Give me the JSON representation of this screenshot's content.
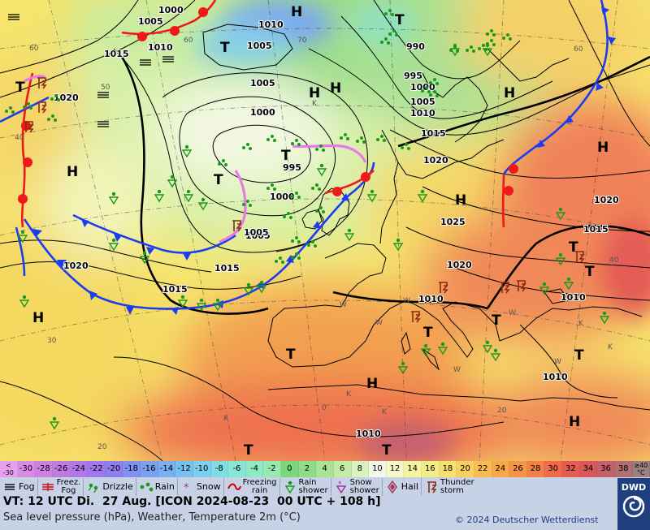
{
  "map": {
    "pressure_labels": [
      {
        "text": "1000"
      },
      {
        "text": "1005"
      },
      {
        "text": "1010"
      },
      {
        "text": "1010"
      },
      {
        "text": "1005"
      },
      {
        "text": "1015"
      },
      {
        "text": "1020"
      },
      {
        "text": "1005"
      },
      {
        "text": "1000"
      },
      {
        "text": "995"
      },
      {
        "text": "1000"
      },
      {
        "text": "1005"
      },
      {
        "text": "990"
      },
      {
        "text": "995"
      },
      {
        "text": "1000"
      },
      {
        "text": "1005"
      },
      {
        "text": "1010"
      },
      {
        "text": "1015"
      },
      {
        "text": "1020"
      },
      {
        "text": "1025"
      },
      {
        "text": "1020"
      },
      {
        "text": "1015"
      },
      {
        "text": "1020"
      },
      {
        "text": "1015"
      },
      {
        "text": "1010"
      },
      {
        "text": "1010"
      },
      {
        "text": "1010"
      },
      {
        "text": "1015"
      },
      {
        "text": "1020"
      },
      {
        "text": "1005"
      },
      {
        "text": "1010"
      }
    ],
    "pressure_centers": [
      {
        "text": "H",
        "color": "#000000"
      },
      {
        "text": "T",
        "color": "#000000"
      },
      {
        "text": "T",
        "color": "#000000"
      },
      {
        "text": "H",
        "color": "#000000"
      },
      {
        "text": "T",
        "color": "#000000"
      },
      {
        "text": "H",
        "color": "#000000"
      },
      {
        "text": "T",
        "color": "#000000"
      },
      {
        "text": "T",
        "color": "#000000"
      },
      {
        "text": "H",
        "color": "#000000"
      },
      {
        "text": "H",
        "color": "#000000"
      },
      {
        "text": "H",
        "color": "#000000"
      },
      {
        "text": "H",
        "color": "#000000"
      },
      {
        "text": "T",
        "color": "#000000"
      },
      {
        "text": "T",
        "color": "#000000"
      },
      {
        "text": "T",
        "color": "#000000"
      },
      {
        "text": "T",
        "color": "#000000"
      },
      {
        "text": "H",
        "color": "#000000"
      },
      {
        "text": "H",
        "color": "#000000"
      },
      {
        "text": "T",
        "color": "#000000"
      },
      {
        "text": "T",
        "color": "#000000"
      },
      {
        "text": "H",
        "color": "#000000"
      },
      {
        "text": "H",
        "color": "#000000"
      },
      {
        "text": "T",
        "color": "#000000"
      },
      {
        "text": "T",
        "color": "#000000"
      }
    ],
    "grid_labels": [
      {
        "text": "60"
      },
      {
        "text": "60"
      },
      {
        "text": "70"
      },
      {
        "text": "60"
      },
      {
        "text": "50"
      },
      {
        "text": "40"
      },
      {
        "text": "40"
      },
      {
        "text": "30"
      },
      {
        "text": "20"
      },
      {
        "text": "0"
      },
      {
        "text": "20"
      }
    ],
    "airmass_labels": [
      {
        "text": "W"
      },
      {
        "text": "W"
      },
      {
        "text": "W"
      },
      {
        "text": "W"
      },
      {
        "text": "W"
      },
      {
        "text": "K"
      },
      {
        "text": "K"
      },
      {
        "text": "K"
      },
      {
        "text": "K"
      },
      {
        "text": "K"
      },
      {
        "text": "K"
      },
      {
        "text": "W"
      }
    ]
  },
  "temperature_scale": {
    "items": [
      {
        "label": "<\n-30",
        "color": "#e6a0f0"
      },
      {
        "label": "-30",
        "color": "#d98ce6"
      },
      {
        "label": "-28",
        "color": "#cc80e0"
      },
      {
        "label": "-26",
        "color": "#bf7ae0"
      },
      {
        "label": "-24",
        "color": "#b078e6"
      },
      {
        "label": "-22",
        "color": "#a078eb"
      },
      {
        "label": "-20",
        "color": "#8f7ef0"
      },
      {
        "label": "-18",
        "color": "#8090f0"
      },
      {
        "label": "-16",
        "color": "#7aa0f0"
      },
      {
        "label": "-14",
        "color": "#78b0f0"
      },
      {
        "label": "-12",
        "color": "#78c0f0"
      },
      {
        "label": "-10",
        "color": "#7ad0ee"
      },
      {
        "label": "-8",
        "color": "#80dde6"
      },
      {
        "label": "-6",
        "color": "#88e6d8"
      },
      {
        "label": "-4",
        "color": "#90e8c4"
      },
      {
        "label": "-2",
        "color": "#98e8b0"
      },
      {
        "label": "0",
        "color": "#7cd67c"
      },
      {
        "label": "2",
        "color": "#90dc88"
      },
      {
        "label": "4",
        "color": "#a8e494"
      },
      {
        "label": "6",
        "color": "#c4eca8"
      },
      {
        "label": "8",
        "color": "#dcf2c0"
      },
      {
        "label": "10",
        "color": "#f4f8e8"
      },
      {
        "label": "12",
        "color": "#f8f8c8"
      },
      {
        "label": "14",
        "color": "#f4f4a0"
      },
      {
        "label": "16",
        "color": "#f4ec88"
      },
      {
        "label": "18",
        "color": "#f6e070"
      },
      {
        "label": "20",
        "color": "#f8d060"
      },
      {
        "label": "22",
        "color": "#f8bc50"
      },
      {
        "label": "24",
        "color": "#f8a848"
      },
      {
        "label": "26",
        "color": "#f89448"
      },
      {
        "label": "28",
        "color": "#f48048"
      },
      {
        "label": "30",
        "color": "#ee6c4c"
      },
      {
        "label": "32",
        "color": "#e45c54"
      },
      {
        "label": "34",
        "color": "#d8585c"
      },
      {
        "label": "36",
        "color": "#c4606c"
      },
      {
        "label": "38",
        "color": "#b07070"
      },
      {
        "label": "≥40\n°C",
        "color": "#9c8080"
      }
    ]
  },
  "legend": {
    "fog": "Fog",
    "freezing_fog": "Freez.\nFog",
    "drizzle": "Drizzle",
    "rain": "Rain",
    "snow": "Snow",
    "freezing_rain": "Freezing\nrain",
    "rain_shower": "Rain\nshower",
    "snow_shower": "Snow\nshower",
    "hail": "Hail",
    "thunderstorm": "Thunder\nstorm"
  },
  "info": {
    "valid_time": "VT: 12 UTC Di.  27 Aug. [ICON 2024-08-23  00 UTC + 108 h]",
    "description": "Sea level pressure (hPa), Weather, Temperature 2m (°C)"
  },
  "copyright": "© 2024 Deutscher Wetterdienst",
  "logo": "DWD"
}
